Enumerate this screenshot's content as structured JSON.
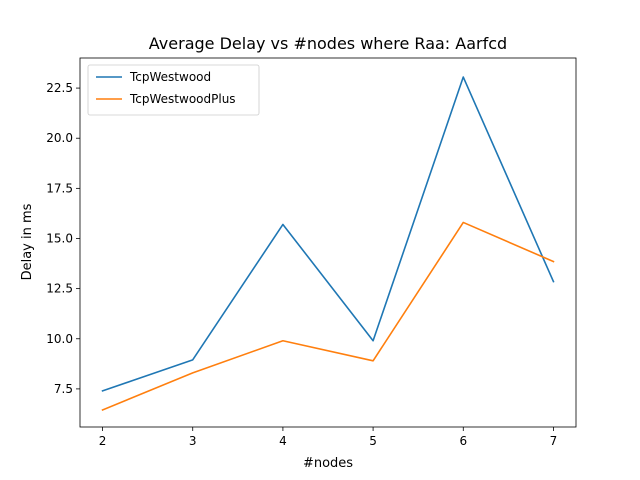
{
  "chart_data": {
    "type": "line",
    "title": "Average Delay vs #nodes where Raa: Aarfcd",
    "xlabel": "#nodes",
    "ylabel": "Delay in ms",
    "x": [
      2,
      3,
      4,
      5,
      6,
      7
    ],
    "xlim": [
      1.75,
      7.25
    ],
    "ylim": [
      5.6,
      24.0
    ],
    "xticks": [
      2,
      3,
      4,
      5,
      6,
      7
    ],
    "xtick_labels": [
      "2",
      "3",
      "4",
      "5",
      "6",
      "7"
    ],
    "yticks": [
      7.5,
      10.0,
      12.5,
      15.0,
      17.5,
      20.0,
      22.5
    ],
    "ytick_labels": [
      "7.5",
      "10.0",
      "12.5",
      "15.0",
      "17.5",
      "20.0",
      "22.5"
    ],
    "grid": false,
    "legend_position": "top-left",
    "series": [
      {
        "name": "TcpWestwood",
        "color": "#1f77b4",
        "values": [
          7.4,
          8.95,
          15.7,
          9.9,
          23.05,
          12.85
        ]
      },
      {
        "name": "TcpWestwoodPlus",
        "color": "#ff7f0e",
        "values": [
          6.45,
          8.3,
          9.9,
          8.9,
          15.8,
          13.85
        ]
      }
    ]
  }
}
